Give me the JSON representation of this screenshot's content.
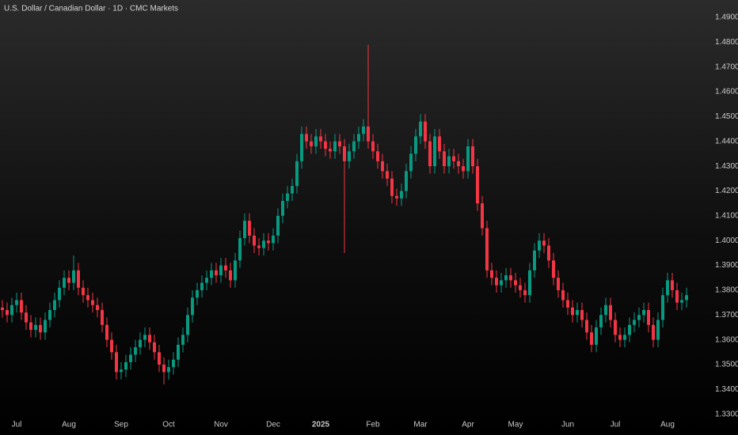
{
  "chart_data": {
    "type": "candlestick",
    "title": "U.S. Dollar / Canadian Dollar · 1D · CMC Markets",
    "categories": [
      null,
      null,
      null,
      "Jul",
      null,
      null,
      null,
      null,
      null,
      null,
      null,
      null,
      null,
      null,
      "Aug",
      null,
      null,
      null,
      null,
      null,
      null,
      null,
      null,
      null,
      null,
      "Sep",
      null,
      null,
      null,
      null,
      null,
      null,
      null,
      null,
      null,
      "Oct",
      null,
      null,
      null,
      null,
      null,
      null,
      null,
      null,
      null,
      null,
      "Nov",
      null,
      null,
      null,
      null,
      null,
      null,
      null,
      null,
      null,
      null,
      "Dec",
      null,
      null,
      null,
      null,
      null,
      null,
      null,
      null,
      null,
      "2025",
      null,
      null,
      null,
      null,
      null,
      null,
      null,
      null,
      null,
      null,
      "Feb",
      null,
      null,
      null,
      null,
      null,
      null,
      null,
      null,
      null,
      "Mar",
      null,
      null,
      null,
      null,
      null,
      null,
      null,
      null,
      null,
      "Apr",
      null,
      null,
      null,
      null,
      null,
      null,
      null,
      null,
      null,
      "May",
      null,
      null,
      null,
      null,
      null,
      null,
      null,
      null,
      null,
      null,
      "Jun",
      null,
      null,
      null,
      null,
      null,
      null,
      null,
      null,
      null,
      "Jul",
      null,
      null,
      null,
      null,
      null,
      null,
      null,
      null,
      null,
      null,
      "Aug",
      null,
      null,
      null,
      null
    ],
    "open": [
      1.373,
      1.372,
      1.37,
      1.374,
      1.376,
      1.371,
      1.367,
      1.364,
      1.366,
      1.363,
      1.368,
      1.372,
      1.376,
      1.381,
      1.385,
      1.383,
      1.388,
      1.381,
      1.378,
      1.376,
      1.374,
      1.372,
      1.366,
      1.36,
      1.355,
      1.347,
      1.348,
      1.351,
      1.354,
      1.357,
      1.36,
      1.362,
      1.359,
      1.355,
      1.35,
      1.347,
      1.349,
      1.352,
      1.358,
      1.362,
      1.37,
      1.377,
      1.38,
      1.383,
      1.385,
      1.388,
      1.386,
      1.39,
      1.388,
      1.384,
      1.392,
      1.401,
      1.408,
      1.402,
      1.398,
      1.397,
      1.4,
      1.399,
      1.402,
      1.41,
      1.416,
      1.419,
      1.422,
      1.432,
      1.443,
      1.44,
      1.438,
      1.442,
      1.44,
      1.437,
      1.436,
      1.44,
      1.438,
      1.432,
      1.436,
      1.44,
      1.443,
      1.446,
      1.44,
      1.436,
      1.432,
      1.428,
      1.425,
      1.418,
      1.417,
      1.42,
      1.428,
      1.435,
      1.442,
      1.448,
      1.44,
      1.43,
      1.442,
      1.436,
      1.43,
      1.434,
      1.432,
      1.43,
      1.428,
      1.438,
      1.43,
      1.415,
      1.405,
      1.388,
      1.385,
      1.382,
      1.384,
      1.386,
      1.384,
      1.382,
      1.38,
      1.378,
      1.388,
      1.396,
      1.4,
      1.398,
      1.392,
      1.385,
      1.38,
      1.376,
      1.373,
      1.37,
      1.372,
      1.368,
      1.363,
      1.358,
      1.365,
      1.37,
      1.374,
      1.368,
      1.362,
      1.36,
      1.362,
      1.366,
      1.368,
      1.37,
      1.372,
      1.366,
      1.36,
      1.368,
      1.378,
      1.384,
      1.38,
      1.375,
      1.376
    ],
    "high": [
      1.376,
      1.375,
      1.377,
      1.379,
      1.379,
      1.374,
      1.37,
      1.369,
      1.369,
      1.371,
      1.375,
      1.379,
      1.384,
      1.388,
      1.388,
      1.394,
      1.391,
      1.384,
      1.381,
      1.379,
      1.377,
      1.375,
      1.369,
      1.363,
      1.358,
      1.351,
      1.354,
      1.357,
      1.36,
      1.363,
      1.365,
      1.365,
      1.362,
      1.358,
      1.353,
      1.352,
      1.355,
      1.361,
      1.365,
      1.373,
      1.38,
      1.383,
      1.386,
      1.388,
      1.391,
      1.391,
      1.393,
      1.393,
      1.391,
      1.395,
      1.404,
      1.411,
      1.411,
      1.405,
      1.401,
      1.403,
      1.403,
      1.405,
      1.413,
      1.419,
      1.422,
      1.425,
      1.435,
      1.446,
      1.446,
      1.443,
      1.445,
      1.445,
      1.443,
      1.44,
      1.443,
      1.443,
      1.441,
      1.439,
      1.443,
      1.446,
      1.449,
      1.479,
      1.443,
      1.439,
      1.435,
      1.431,
      1.428,
      1.421,
      1.423,
      1.431,
      1.438,
      1.445,
      1.451,
      1.451,
      1.443,
      1.445,
      1.445,
      1.439,
      1.437,
      1.437,
      1.435,
      1.433,
      1.441,
      1.441,
      1.433,
      1.418,
      1.408,
      1.391,
      1.388,
      1.387,
      1.389,
      1.389,
      1.387,
      1.385,
      1.383,
      1.391,
      1.399,
      1.403,
      1.403,
      1.401,
      1.395,
      1.388,
      1.383,
      1.379,
      1.376,
      1.375,
      1.375,
      1.371,
      1.366,
      1.368,
      1.373,
      1.377,
      1.377,
      1.371,
      1.365,
      1.365,
      1.369,
      1.371,
      1.373,
      1.375,
      1.375,
      1.369,
      1.371,
      1.381,
      1.387,
      1.387,
      1.383,
      1.379,
      1.381
    ],
    "low": [
      1.369,
      1.367,
      1.367,
      1.371,
      1.368,
      1.364,
      1.361,
      1.361,
      1.36,
      1.36,
      1.365,
      1.369,
      1.373,
      1.378,
      1.38,
      1.38,
      1.378,
      1.375,
      1.373,
      1.371,
      1.369,
      1.363,
      1.357,
      1.352,
      1.344,
      1.344,
      1.345,
      1.348,
      1.351,
      1.354,
      1.357,
      1.356,
      1.352,
      1.347,
      1.342,
      1.344,
      1.346,
      1.349,
      1.355,
      1.359,
      1.367,
      1.374,
      1.377,
      1.38,
      1.382,
      1.383,
      1.383,
      1.385,
      1.381,
      1.381,
      1.389,
      1.398,
      1.399,
      1.395,
      1.394,
      1.394,
      1.396,
      1.396,
      1.399,
      1.407,
      1.413,
      1.416,
      1.419,
      1.429,
      1.437,
      1.435,
      1.435,
      1.437,
      1.434,
      1.433,
      1.433,
      1.435,
      1.395,
      1.429,
      1.433,
      1.437,
      1.44,
      1.437,
      1.433,
      1.429,
      1.425,
      1.422,
      1.415,
      1.414,
      1.414,
      1.417,
      1.425,
      1.432,
      1.439,
      1.437,
      1.427,
      1.427,
      1.433,
      1.427,
      1.427,
      1.429,
      1.427,
      1.425,
      1.425,
      1.427,
      1.412,
      1.402,
      1.385,
      1.382,
      1.379,
      1.379,
      1.381,
      1.381,
      1.379,
      1.377,
      1.375,
      1.375,
      1.385,
      1.393,
      1.395,
      1.389,
      1.382,
      1.377,
      1.373,
      1.37,
      1.367,
      1.367,
      1.365,
      1.36,
      1.355,
      1.355,
      1.362,
      1.367,
      1.365,
      1.359,
      1.357,
      1.357,
      1.359,
      1.363,
      1.365,
      1.367,
      1.363,
      1.357,
      1.357,
      1.365,
      1.375,
      1.377,
      1.372,
      1.372,
      1.373
    ],
    "close": [
      1.372,
      1.37,
      1.374,
      1.376,
      1.371,
      1.367,
      1.364,
      1.366,
      1.363,
      1.368,
      1.372,
      1.376,
      1.381,
      1.385,
      1.383,
      1.388,
      1.381,
      1.378,
      1.376,
      1.374,
      1.372,
      1.366,
      1.36,
      1.355,
      1.347,
      1.348,
      1.351,
      1.354,
      1.357,
      1.36,
      1.362,
      1.359,
      1.355,
      1.35,
      1.347,
      1.349,
      1.352,
      1.358,
      1.362,
      1.37,
      1.377,
      1.38,
      1.383,
      1.385,
      1.388,
      1.386,
      1.39,
      1.388,
      1.384,
      1.392,
      1.401,
      1.408,
      1.402,
      1.398,
      1.397,
      1.4,
      1.399,
      1.402,
      1.41,
      1.416,
      1.419,
      1.422,
      1.432,
      1.443,
      1.44,
      1.438,
      1.442,
      1.44,
      1.437,
      1.436,
      1.44,
      1.438,
      1.432,
      1.436,
      1.44,
      1.443,
      1.446,
      1.44,
      1.436,
      1.432,
      1.428,
      1.425,
      1.418,
      1.417,
      1.42,
      1.428,
      1.435,
      1.442,
      1.448,
      1.44,
      1.43,
      1.442,
      1.436,
      1.43,
      1.434,
      1.432,
      1.43,
      1.428,
      1.438,
      1.43,
      1.415,
      1.405,
      1.388,
      1.385,
      1.382,
      1.384,
      1.386,
      1.384,
      1.382,
      1.38,
      1.378,
      1.388,
      1.396,
      1.4,
      1.398,
      1.392,
      1.385,
      1.38,
      1.376,
      1.373,
      1.37,
      1.372,
      1.368,
      1.363,
      1.358,
      1.365,
      1.37,
      1.374,
      1.368,
      1.362,
      1.36,
      1.362,
      1.366,
      1.368,
      1.37,
      1.372,
      1.366,
      1.36,
      1.368,
      1.378,
      1.384,
      1.38,
      1.375,
      1.376,
      1.378
    ],
    "up_color": "#089981",
    "down_color": "#f23645",
    "ylim": [
      1.328,
      1.497
    ],
    "yticks": [
      {
        "value": 1.33,
        "label": "1.33000"
      },
      {
        "value": 1.34,
        "label": "1.34000"
      },
      {
        "value": 1.35,
        "label": "1.35000"
      },
      {
        "value": 1.36,
        "label": "1.36000"
      },
      {
        "value": 1.37,
        "label": "1.37000"
      },
      {
        "value": 1.38,
        "label": "1.38000"
      },
      {
        "value": 1.39,
        "label": "1.39000"
      },
      {
        "value": 1.4,
        "label": "1.40000"
      },
      {
        "value": 1.41,
        "label": "1.41000"
      },
      {
        "value": 1.42,
        "label": "1.42000"
      },
      {
        "value": 1.43,
        "label": "1.43000"
      },
      {
        "value": 1.44,
        "label": "1.44000"
      },
      {
        "value": 1.45,
        "label": "1.45000"
      },
      {
        "value": 1.46,
        "label": "1.46000"
      },
      {
        "value": 1.47,
        "label": "1.47000"
      },
      {
        "value": 1.48,
        "label": "1.48000"
      },
      {
        "value": 1.49,
        "label": "1.49000"
      }
    ],
    "grid": false
  }
}
